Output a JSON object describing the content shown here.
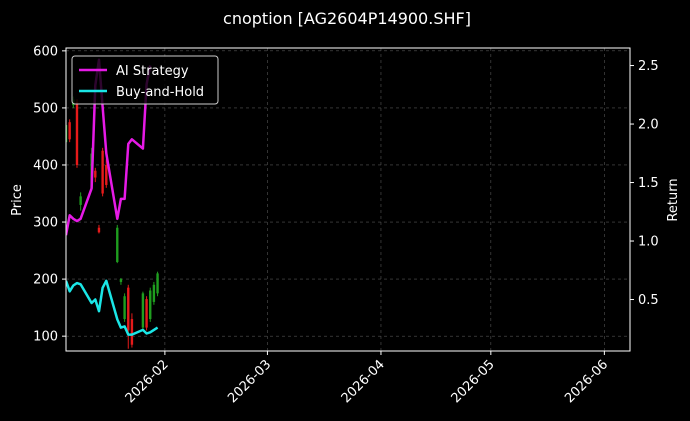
{
  "chart_data": {
    "type": "line",
    "title": "cnoption [AG2604P14900.SHF]",
    "ylabel_left": "Price",
    "ylabel_right": "Return",
    "colors": {
      "background": "#000000",
      "grid": "#555555",
      "ai_strategy": "#e61ae6",
      "buy_and_hold": "#1ae6e6",
      "candle_up": "#1f9e1f",
      "candle_down": "#e61a1a",
      "axis": "#ffffff"
    },
    "grid": true,
    "legend_position": "top-left",
    "x_range": [
      "2026-01-05",
      "2026-06-08"
    ],
    "x_ticks": [
      "2026-02",
      "2026-03",
      "2026-04",
      "2026-05",
      "2026-06"
    ],
    "x_tick_dates": [
      "2026-02-01",
      "2026-03-01",
      "2026-04-01",
      "2026-05-01",
      "2026-06-01"
    ],
    "left_axis": {
      "ylim": [
        74,
        605
      ],
      "ticks": [
        "100",
        "200",
        "300",
        "400",
        "500",
        "600"
      ],
      "tick_values": [
        100,
        200,
        300,
        400,
        500,
        600
      ]
    },
    "right_axis": {
      "ylim": [
        0.06,
        2.65
      ],
      "ticks": [
        "0.5",
        "1.0",
        "1.5",
        "2.0",
        "2.5"
      ],
      "tick_values": [
        0.5,
        1.0,
        1.5,
        2.0,
        2.5
      ]
    },
    "series": [
      {
        "name": "AI Strategy",
        "axis": "right",
        "x": [
          "2026-01-05",
          "2026-01-06",
          "2026-01-07",
          "2026-01-08",
          "2026-01-09",
          "2026-01-12",
          "2026-01-13",
          "2026-01-14",
          "2026-01-15",
          "2026-01-16",
          "2026-01-19",
          "2026-01-20",
          "2026-01-21",
          "2026-01-22",
          "2026-01-23",
          "2026-01-26",
          "2026-01-27",
          "2026-01-28"
        ],
        "values": [
          1.05,
          1.22,
          1.19,
          1.17,
          1.19,
          1.45,
          2.33,
          2.55,
          2.15,
          1.75,
          1.19,
          1.36,
          1.36,
          1.83,
          1.87,
          1.79,
          2.34,
          2.5
        ]
      },
      {
        "name": "Buy-and-Hold",
        "axis": "right",
        "x": [
          "2026-01-05",
          "2026-01-06",
          "2026-01-07",
          "2026-01-08",
          "2026-01-09",
          "2026-01-12",
          "2026-01-13",
          "2026-01-14",
          "2026-01-15",
          "2026-01-16",
          "2026-01-19",
          "2026-01-20",
          "2026-01-21",
          "2026-01-22",
          "2026-01-23",
          "2026-01-26",
          "2026-01-27",
          "2026-01-28",
          "2026-01-29",
          "2026-01-30"
        ],
        "values": [
          0.66,
          0.57,
          0.62,
          0.64,
          0.63,
          0.47,
          0.5,
          0.4,
          0.6,
          0.66,
          0.33,
          0.26,
          0.27,
          0.2,
          0.2,
          0.24,
          0.21,
          0.22,
          0.24,
          0.26
        ]
      }
    ],
    "candles": {
      "axis": "left",
      "items": [
        {
          "date": "2026-01-05",
          "open": 440,
          "close": 470,
          "low": 430,
          "high": 478
        },
        {
          "date": "2026-01-06",
          "open": 475,
          "close": 445,
          "low": 440,
          "high": 480
        },
        {
          "date": "2026-01-07",
          "open": 505,
          "close": 515,
          "low": 500,
          "high": 520
        },
        {
          "date": "2026-01-08",
          "open": 510,
          "close": 400,
          "low": 395,
          "high": 515
        },
        {
          "date": "2026-01-09",
          "open": 330,
          "close": 345,
          "low": 320,
          "high": 352
        },
        {
          "date": "2026-01-12",
          "open": 360,
          "close": 420,
          "low": 355,
          "high": 430
        },
        {
          "date": "2026-01-13",
          "open": 390,
          "close": 378,
          "low": 370,
          "high": 395
        },
        {
          "date": "2026-01-14",
          "open": 290,
          "close": 282,
          "low": 280,
          "high": 295
        },
        {
          "date": "2026-01-15",
          "open": 425,
          "close": 350,
          "low": 345,
          "high": 430
        },
        {
          "date": "2026-01-16",
          "open": 400,
          "close": 365,
          "low": 360,
          "high": 410
        },
        {
          "date": "2026-01-19",
          "open": 230,
          "close": 290,
          "low": 228,
          "high": 295
        },
        {
          "date": "2026-01-20",
          "open": 195,
          "close": 200,
          "low": 190,
          "high": 202
        },
        {
          "date": "2026-01-21",
          "open": 130,
          "close": 170,
          "low": 125,
          "high": 175
        },
        {
          "date": "2026-01-22",
          "open": 185,
          "close": 110,
          "low": 78,
          "high": 190
        },
        {
          "date": "2026-01-23",
          "open": 130,
          "close": 85,
          "low": 80,
          "high": 140
        },
        {
          "date": "2026-01-26",
          "open": 115,
          "close": 175,
          "low": 110,
          "high": 178
        },
        {
          "date": "2026-01-27",
          "open": 165,
          "close": 115,
          "low": 110,
          "high": 170
        },
        {
          "date": "2026-01-28",
          "open": 130,
          "close": 180,
          "low": 125,
          "high": 185
        },
        {
          "date": "2026-01-29",
          "open": 160,
          "close": 190,
          "low": 155,
          "high": 195
        },
        {
          "date": "2026-01-30",
          "open": 175,
          "close": 210,
          "low": 170,
          "high": 213
        }
      ]
    }
  }
}
